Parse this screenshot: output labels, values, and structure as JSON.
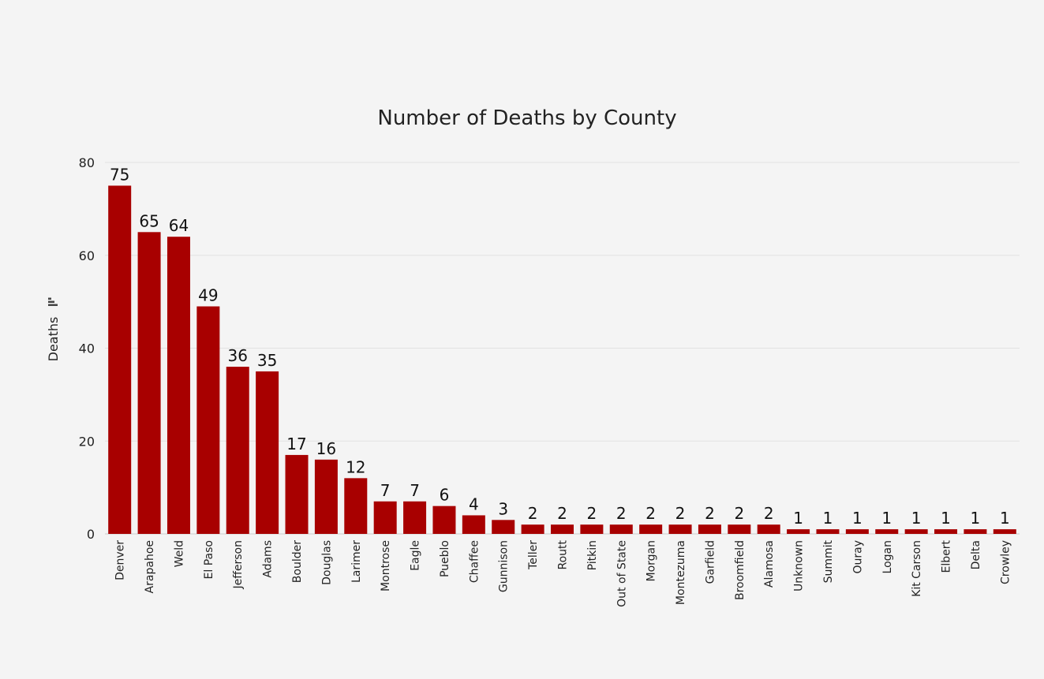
{
  "chart_data": {
    "type": "bar",
    "title": "Number of Deaths by County",
    "xlabel": "",
    "ylabel": "Deaths",
    "ylim": [
      0,
      80
    ],
    "yticks": [
      0,
      20,
      40,
      60,
      80
    ],
    "grid": true,
    "bar_color": "#a80000",
    "categories": [
      "Denver",
      "Arapahoe",
      "Weld",
      "El Paso",
      "Jefferson",
      "Adams",
      "Boulder",
      "Douglas",
      "Larimer",
      "Montrose",
      "Eagle",
      "Pueblo",
      "Chaffee",
      "Gunnison",
      "Teller",
      "Routt",
      "Pitkin",
      "Out of State",
      "Morgan",
      "Montezuma",
      "Garfield",
      "Broomfield",
      "Alamosa",
      "Unknown",
      "Summit",
      "Ouray",
      "Logan",
      "Kit Carson",
      "Elbert",
      "Delta",
      "Crowley"
    ],
    "values": [
      75,
      65,
      64,
      49,
      36,
      35,
      17,
      16,
      12,
      7,
      7,
      6,
      4,
      3,
      2,
      2,
      2,
      2,
      2,
      2,
      2,
      2,
      2,
      1,
      1,
      1,
      1,
      1,
      1,
      1,
      1
    ]
  }
}
